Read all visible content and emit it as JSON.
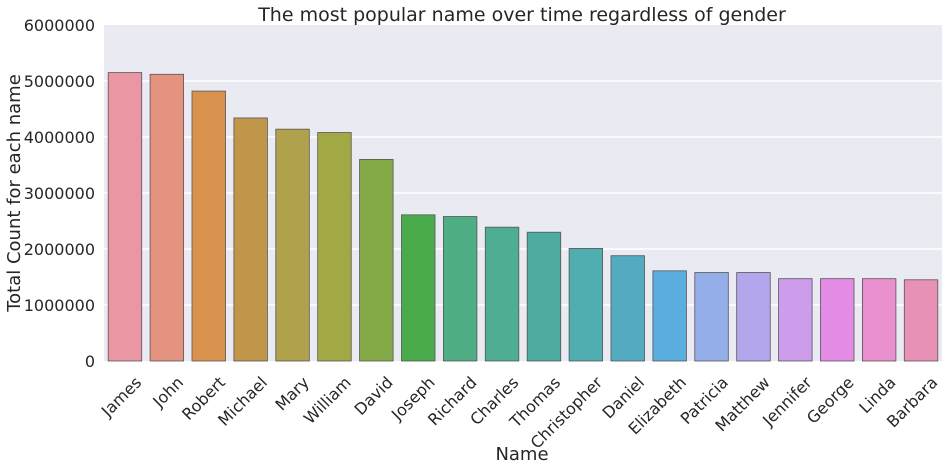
{
  "chart_data": {
    "type": "bar",
    "title": "The most popular name over time regardless of gender",
    "xlabel": "Name",
    "ylabel": "Total Count for each name",
    "ylim": [
      0,
      6000000
    ],
    "yticks": [
      "0",
      "1000000",
      "2000000",
      "3000000",
      "4000000",
      "5000000",
      "6000000"
    ],
    "grid": true,
    "categories": [
      "James",
      "John",
      "Robert",
      "Michael",
      "Mary",
      "William",
      "David",
      "Joseph",
      "Richard",
      "Charles",
      "Thomas",
      "Christopher",
      "Daniel",
      "Elizabeth",
      "Patricia",
      "Matthew",
      "Jennifer",
      "George",
      "Linda",
      "Barbara"
    ],
    "values": [
      5150000,
      5120000,
      4820000,
      4340000,
      4140000,
      4080000,
      3600000,
      2610000,
      2580000,
      2390000,
      2300000,
      2010000,
      1880000,
      1610000,
      1580000,
      1580000,
      1470000,
      1470000,
      1470000,
      1450000
    ],
    "colors": [
      "#ea96a3",
      "#e4937e",
      "#d8924e",
      "#c0974a",
      "#b0a14c",
      "#a2a844",
      "#84aa48",
      "#4aab4c",
      "#4fae83",
      "#4fad94",
      "#4dab9f",
      "#50aeb0",
      "#52abc0",
      "#5aaddf",
      "#93aee9",
      "#b3a6ed",
      "#cd9deb",
      "#e38be5",
      "#ea8fce",
      "#e891b7"
    ]
  }
}
